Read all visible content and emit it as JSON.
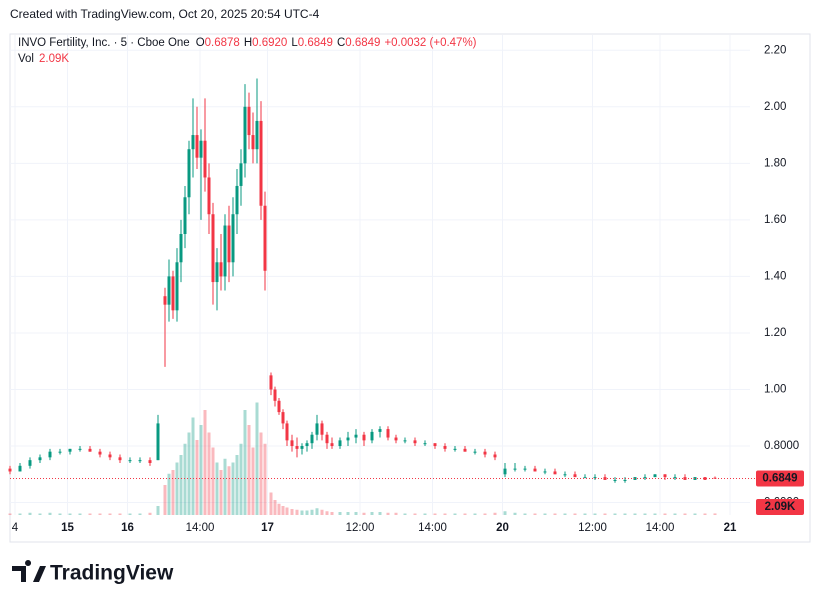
{
  "header": {
    "created": "Created with TradingView.com, Oct 20, 2025 20:54 UTC-4",
    "symbol": "INVO Fertility, Inc. · 5 · Cboe One",
    "o_label": "O",
    "o": "0.6878",
    "h_label": "H",
    "h": "0.6920",
    "l_label": "L",
    "l": "0.6849",
    "c_label": "C",
    "c": "0.6849",
    "change": "+0.0032 (+0.47%)",
    "vol_label": "Vol",
    "vol": "2.09K"
  },
  "footer": {
    "brand": "TradingView"
  },
  "chart_data": {
    "type": "candlestick",
    "up_color": "#089981",
    "down_color": "#f23645",
    "grid": true,
    "xlim": [
      0,
      148
    ],
    "ylim": [
      0.556,
      2.254
    ],
    "vlim": [
      0,
      160
    ],
    "xticks": [
      {
        "value": 1,
        "label": "4"
      },
      {
        "value": 11.5,
        "label": "15"
      },
      {
        "value": 23.5,
        "label": "16"
      },
      {
        "value": 38,
        "label": "14:00"
      },
      {
        "value": 51.5,
        "label": "17"
      },
      {
        "value": 70,
        "label": "12:00"
      },
      {
        "value": 84.5,
        "label": "14:00"
      },
      {
        "value": 98.5,
        "label": "20"
      },
      {
        "value": 116.5,
        "label": "12:00"
      },
      {
        "value": 130,
        "label": "14:00"
      },
      {
        "value": 144,
        "label": "21"
      }
    ],
    "yticks": [
      {
        "value": 2.2,
        "label": "2.20"
      },
      {
        "value": 2.0,
        "label": "2.00"
      },
      {
        "value": 1.8,
        "label": "1.80"
      },
      {
        "value": 1.6,
        "label": "1.60"
      },
      {
        "value": 1.4,
        "label": "1.40"
      },
      {
        "value": 1.2,
        "label": "1.20"
      },
      {
        "value": 1.0,
        "label": "1.00"
      },
      {
        "value": 0.8,
        "label": "0.8000"
      },
      {
        "value": 0.6,
        "label": "0.6000"
      }
    ],
    "last_price": 0.6849,
    "last_volume": {
      "value": 2.09,
      "label": "2.09K"
    },
    "candles": [
      [
        0,
        0.72,
        0.73,
        0.7,
        0.71,
        2
      ],
      [
        2,
        0.71,
        0.74,
        0.71,
        0.73,
        2
      ],
      [
        4,
        0.73,
        0.76,
        0.72,
        0.75,
        3
      ],
      [
        6,
        0.75,
        0.77,
        0.74,
        0.76,
        2
      ],
      [
        8,
        0.76,
        0.79,
        0.75,
        0.78,
        3
      ],
      [
        10,
        0.78,
        0.79,
        0.77,
        0.78,
        2
      ],
      [
        12,
        0.78,
        0.79,
        0.77,
        0.79,
        2
      ],
      [
        14,
        0.79,
        0.8,
        0.78,
        0.79,
        2
      ],
      [
        16,
        0.79,
        0.8,
        0.78,
        0.78,
        2
      ],
      [
        18,
        0.78,
        0.79,
        0.76,
        0.77,
        2
      ],
      [
        20,
        0.77,
        0.78,
        0.75,
        0.76,
        2
      ],
      [
        22,
        0.76,
        0.77,
        0.74,
        0.75,
        2
      ],
      [
        24,
        0.75,
        0.76,
        0.74,
        0.75,
        2
      ],
      [
        26,
        0.75,
        0.76,
        0.74,
        0.75,
        2
      ],
      [
        28,
        0.75,
        0.76,
        0.73,
        0.74,
        3
      ],
      [
        29.6,
        0.75,
        0.91,
        0.75,
        0.88,
        12
      ],
      [
        31,
        1.33,
        1.36,
        1.08,
        1.3,
        40
      ],
      [
        31.8,
        1.3,
        1.46,
        1.24,
        1.4,
        55
      ],
      [
        32.6,
        1.4,
        1.42,
        1.25,
        1.28,
        60
      ],
      [
        33.4,
        1.28,
        1.5,
        1.24,
        1.45,
        70
      ],
      [
        34.2,
        1.45,
        1.6,
        1.38,
        1.55,
        80
      ],
      [
        35,
        1.55,
        1.72,
        1.5,
        1.68,
        95
      ],
      [
        35.8,
        1.68,
        1.88,
        1.62,
        1.85,
        110
      ],
      [
        36.6,
        1.85,
        2.03,
        1.75,
        1.9,
        130
      ],
      [
        37.4,
        1.9,
        2.0,
        1.78,
        1.82,
        100
      ],
      [
        38.2,
        1.82,
        1.92,
        1.6,
        1.88,
        120
      ],
      [
        39,
        1.88,
        2.03,
        1.7,
        1.75,
        140
      ],
      [
        39.8,
        1.75,
        1.8,
        1.55,
        1.62,
        110
      ],
      [
        40.6,
        1.62,
        1.66,
        1.3,
        1.38,
        90
      ],
      [
        41.4,
        1.38,
        1.5,
        1.28,
        1.45,
        70
      ],
      [
        42.2,
        1.45,
        1.55,
        1.35,
        1.4,
        60
      ],
      [
        43,
        1.4,
        1.62,
        1.35,
        1.58,
        75
      ],
      [
        43.8,
        1.58,
        1.65,
        1.38,
        1.45,
        65
      ],
      [
        44.6,
        1.45,
        1.68,
        1.4,
        1.62,
        70
      ],
      [
        45.4,
        1.62,
        1.78,
        1.55,
        1.72,
        80
      ],
      [
        46.2,
        1.72,
        1.85,
        1.65,
        1.8,
        95
      ],
      [
        47,
        1.8,
        2.08,
        1.75,
        2.0,
        140
      ],
      [
        47.8,
        2.0,
        2.05,
        1.85,
        1.9,
        120
      ],
      [
        48.6,
        1.9,
        1.98,
        1.8,
        1.85,
        90
      ],
      [
        49.4,
        1.85,
        2.1,
        1.8,
        1.95,
        150
      ],
      [
        50.2,
        1.95,
        2.02,
        1.6,
        1.65,
        110
      ],
      [
        51,
        1.65,
        1.7,
        1.35,
        1.42,
        95
      ],
      [
        52.2,
        1.05,
        1.06,
        0.98,
        1.0,
        30
      ],
      [
        53,
        1.0,
        1.01,
        0.94,
        0.96,
        20
      ],
      [
        53.8,
        0.96,
        0.97,
        0.91,
        0.92,
        15
      ],
      [
        54.6,
        0.92,
        0.93,
        0.86,
        0.88,
        12
      ],
      [
        55.4,
        0.88,
        0.89,
        0.8,
        0.82,
        10
      ],
      [
        56.4,
        0.82,
        0.84,
        0.78,
        0.8,
        8
      ],
      [
        57.4,
        0.8,
        0.83,
        0.76,
        0.79,
        7
      ],
      [
        58.4,
        0.79,
        0.81,
        0.77,
        0.8,
        6
      ],
      [
        59.4,
        0.8,
        0.82,
        0.78,
        0.81,
        6
      ],
      [
        60.4,
        0.81,
        0.85,
        0.79,
        0.84,
        7
      ],
      [
        61.4,
        0.84,
        0.91,
        0.82,
        0.88,
        9
      ],
      [
        62.4,
        0.88,
        0.89,
        0.82,
        0.84,
        7
      ],
      [
        63.4,
        0.84,
        0.85,
        0.79,
        0.81,
        5
      ],
      [
        64.4,
        0.81,
        0.83,
        0.79,
        0.8,
        4
      ],
      [
        66,
        0.8,
        0.83,
        0.79,
        0.82,
        4
      ],
      [
        67.6,
        0.82,
        0.85,
        0.8,
        0.83,
        4
      ],
      [
        69.2,
        0.83,
        0.86,
        0.81,
        0.84,
        4
      ],
      [
        70.8,
        0.84,
        0.85,
        0.8,
        0.82,
        3
      ],
      [
        72.4,
        0.82,
        0.86,
        0.81,
        0.85,
        4
      ],
      [
        74,
        0.85,
        0.87,
        0.83,
        0.86,
        4
      ],
      [
        75.6,
        0.86,
        0.87,
        0.82,
        0.83,
        3
      ],
      [
        77.2,
        0.83,
        0.84,
        0.81,
        0.82,
        3
      ],
      [
        79,
        0.82,
        0.83,
        0.81,
        0.82,
        2
      ],
      [
        81,
        0.82,
        0.83,
        0.8,
        0.81,
        2
      ],
      [
        83,
        0.81,
        0.82,
        0.8,
        0.81,
        2
      ],
      [
        85,
        0.81,
        0.81,
        0.79,
        0.8,
        2
      ],
      [
        87,
        0.8,
        0.81,
        0.78,
        0.79,
        2
      ],
      [
        89,
        0.79,
        0.8,
        0.78,
        0.79,
        2
      ],
      [
        91,
        0.79,
        0.8,
        0.78,
        0.78,
        2
      ],
      [
        93,
        0.78,
        0.79,
        0.77,
        0.78,
        2
      ],
      [
        95,
        0.78,
        0.79,
        0.76,
        0.77,
        2
      ],
      [
        97,
        0.77,
        0.78,
        0.75,
        0.76,
        3
      ],
      [
        99,
        0.7,
        0.74,
        0.69,
        0.72,
        5
      ],
      [
        101,
        0.72,
        0.74,
        0.71,
        0.72,
        3
      ],
      [
        103,
        0.72,
        0.73,
        0.71,
        0.72,
        2
      ],
      [
        105,
        0.72,
        0.73,
        0.71,
        0.71,
        2
      ],
      [
        107,
        0.71,
        0.72,
        0.7,
        0.71,
        2
      ],
      [
        109,
        0.71,
        0.72,
        0.7,
        0.7,
        2
      ],
      [
        111,
        0.7,
        0.71,
        0.69,
        0.7,
        2
      ],
      [
        113,
        0.7,
        0.71,
        0.69,
        0.69,
        2
      ],
      [
        115,
        0.69,
        0.7,
        0.69,
        0.69,
        2
      ],
      [
        117,
        0.69,
        0.7,
        0.68,
        0.69,
        2
      ],
      [
        119,
        0.69,
        0.7,
        0.68,
        0.68,
        2
      ],
      [
        121,
        0.68,
        0.69,
        0.67,
        0.68,
        2
      ],
      [
        123,
        0.68,
        0.69,
        0.67,
        0.68,
        2
      ],
      [
        125,
        0.68,
        0.69,
        0.68,
        0.69,
        2
      ],
      [
        127,
        0.69,
        0.7,
        0.68,
        0.69,
        2
      ],
      [
        129,
        0.69,
        0.7,
        0.69,
        0.7,
        2
      ],
      [
        131,
        0.7,
        0.7,
        0.68,
        0.69,
        2
      ],
      [
        133,
        0.69,
        0.7,
        0.68,
        0.69,
        2
      ],
      [
        135,
        0.69,
        0.7,
        0.68,
        0.68,
        2
      ],
      [
        137,
        0.68,
        0.69,
        0.68,
        0.69,
        2
      ],
      [
        139,
        0.69,
        0.69,
        0.68,
        0.68,
        2
      ],
      [
        141,
        0.6878,
        0.692,
        0.6849,
        0.6849,
        2.09
      ]
    ]
  }
}
